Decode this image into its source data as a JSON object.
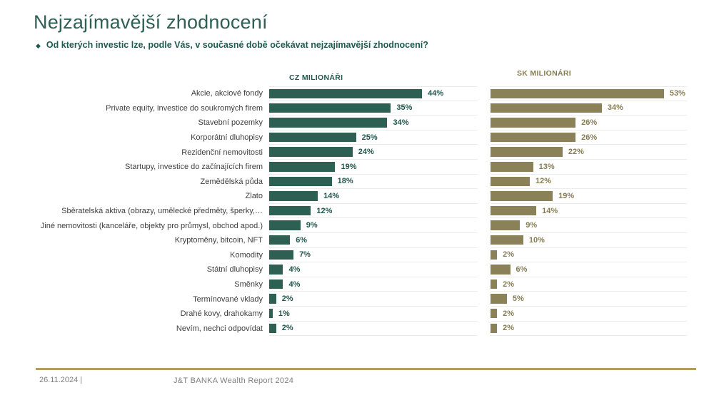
{
  "slide": {
    "title": "Nejzajímavější zhodnocení",
    "subtitle_bullet": "◆",
    "subtitle": "Od kterých investic lze, podle Vás, v současné době očekávat nejzajímavější zhodnocení?",
    "footer": {
      "date": "26.11.2024 |",
      "report": "J&T BANKA Wealth Report 2024"
    }
  },
  "colors": {
    "title_green": "#2e6054",
    "subtitle_green": "#1f5a4e",
    "footer_line_gold": "#b19d60",
    "footer_text_gray": "#7f7f7f",
    "row_separator": "#ececec"
  },
  "chart_data": {
    "type": "bar",
    "orientation": "horizontal",
    "axis_max_percent": 60,
    "grid": "row-separators",
    "legend_position": "column-headers-top",
    "value_suffix": "%",
    "categories": [
      "Akcie, akciové fondy",
      "Private equity, investice do soukromých firem",
      "Stavební pozemky",
      "Korporátní dluhopisy",
      "Rezidenční nemovitosti",
      "Startupy, investice do začínajících firem",
      "Zemědělská půda",
      "Zlato",
      "Sběratelská aktiva (obrazy, umělecké předměty, šperky,…",
      "Jiné nemovitosti (kanceláře, objekty pro průmysl, obchod apod.)",
      "Kryptoměny, bitcoin, NFT",
      "Komodity",
      "Státní dluhopisy",
      "Směnky",
      "Termínované vklady",
      "Drahé kovy, drahokamy",
      "Nevím, nechci odpovídat"
    ],
    "series": [
      {
        "name": "CZ MILIONÁŘI",
        "bar_color": "#2d5f53",
        "text_color": "#21574c",
        "values": [
          44,
          35,
          34,
          25,
          24,
          19,
          18,
          14,
          12,
          9,
          6,
          7,
          4,
          4,
          2,
          1,
          2
        ]
      },
      {
        "name": "SK MILIONÁRI",
        "bar_color": "#8b8159",
        "text_color": "#877d54",
        "values": [
          53,
          34,
          26,
          26,
          22,
          13,
          12,
          19,
          14,
          9,
          10,
          2,
          6,
          2,
          5,
          2,
          2
        ]
      }
    ]
  }
}
